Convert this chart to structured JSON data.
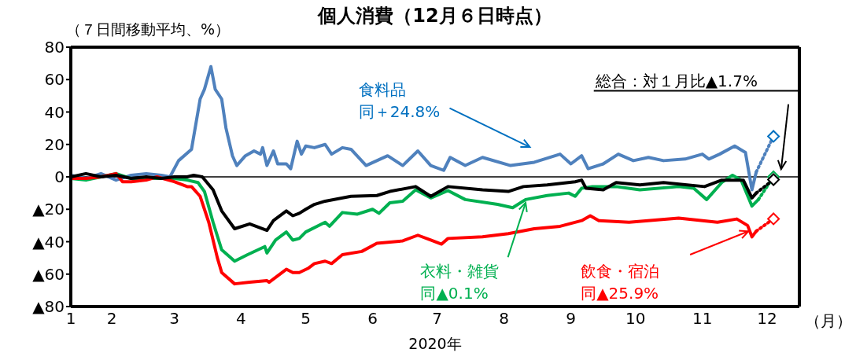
{
  "chart_data": {
    "type": "line",
    "title": "個人消費（12月６日時点）",
    "ylabel": "（７日間移動平均、%）",
    "xlabel": "2020年",
    "xlim": [
      "2020-01-13",
      "2020-12-16"
    ],
    "xticks": [
      {
        "value": "2020-01-13",
        "label": "1"
      },
      {
        "value": "2020-02-01",
        "label": "2"
      },
      {
        "value": "2020-03-01",
        "label": "3"
      },
      {
        "value": "2020-04-01",
        "label": "4"
      },
      {
        "value": "2020-05-01",
        "label": "5"
      },
      {
        "value": "2020-06-01",
        "label": "6"
      },
      {
        "value": "2020-07-01",
        "label": "7"
      },
      {
        "value": "2020-08-01",
        "label": "8"
      },
      {
        "value": "2020-09-01",
        "label": "9"
      },
      {
        "value": "2020-10-01",
        "label": "10"
      },
      {
        "value": "2020-11-01",
        "label": "11"
      },
      {
        "value": "2020-12-01",
        "label": "12"
      }
    ],
    "ylim": [
      -80,
      80
    ],
    "yticks": [
      {
        "value": -80,
        "label": "▲80"
      },
      {
        "value": -60,
        "label": "▲60"
      },
      {
        "value": -40,
        "label": "▲40"
      },
      {
        "value": -20,
        "label": "▲20"
      },
      0,
      20,
      40,
      60,
      80
    ],
    "grid": false,
    "marker": "none",
    "line_style": "solid",
    "ref_lines": [
      {
        "axis": "y",
        "value": 0,
        "color": "#000000"
      }
    ],
    "series": [
      {
        "color": "#4f81bd",
        "x": [
          "2020-01-13",
          "2020-01-20",
          "2020-01-27",
          "2020-02-03",
          "2020-02-10",
          "2020-02-17",
          "2020-02-24",
          "2020-02-28",
          "2020-03-03",
          "2020-03-09",
          "2020-03-13",
          "2020-03-15",
          "2020-03-18",
          "2020-03-20",
          "2020-03-23",
          "2020-03-25",
          "2020-03-28",
          "2020-03-30",
          "2020-04-03",
          "2020-04-07",
          "2020-04-10",
          "2020-04-11",
          "2020-04-13",
          "2020-04-16",
          "2020-04-18",
          "2020-04-22",
          "2020-04-24",
          "2020-04-27",
          "2020-04-29",
          "2020-05-01",
          "2020-05-05",
          "2020-05-10",
          "2020-05-13",
          "2020-05-18",
          "2020-05-22",
          "2020-05-29",
          "2020-06-03",
          "2020-06-08",
          "2020-06-15",
          "2020-06-22",
          "2020-06-28",
          "2020-07-04",
          "2020-07-07",
          "2020-07-14",
          "2020-07-22",
          "2020-08-04",
          "2020-08-15",
          "2020-08-27",
          "2020-09-01",
          "2020-09-06",
          "2020-09-09",
          "2020-09-16",
          "2020-09-23",
          "2020-09-30",
          "2020-10-07",
          "2020-10-14",
          "2020-10-24",
          "2020-11-01",
          "2020-11-04",
          "2020-11-09",
          "2020-11-16",
          "2020-11-21",
          "2020-11-24",
          "2020-11-26"
        ],
        "values": [
          1,
          -1,
          2,
          -2,
          1,
          2,
          1,
          0,
          10,
          17,
          48,
          54,
          68,
          54,
          48,
          30,
          13,
          7,
          13,
          16,
          14,
          18,
          7,
          16,
          8,
          8,
          5,
          22,
          14,
          19,
          18,
          20,
          14,
          18,
          17,
          7,
          10,
          13,
          7,
          16,
          7,
          4,
          12,
          7,
          12,
          7,
          9,
          14,
          8,
          13,
          5,
          8,
          14,
          10,
          12,
          10,
          11,
          14,
          11,
          14,
          19,
          15,
          -8,
          3
        ]
      },
      {
        "color": "#00b050",
        "x": [
          "2020-01-13",
          "2020-01-20",
          "2020-01-27",
          "2020-02-03",
          "2020-02-10",
          "2020-02-17",
          "2020-02-24",
          "2020-03-01",
          "2020-03-07",
          "2020-03-12",
          "2020-03-15",
          "2020-03-19",
          "2020-03-23",
          "2020-03-29",
          "2020-04-04",
          "2020-04-12",
          "2020-04-13",
          "2020-04-17",
          "2020-04-22",
          "2020-04-25",
          "2020-04-28",
          "2020-05-01",
          "2020-05-10",
          "2020-05-12",
          "2020-05-18",
          "2020-05-25",
          "2020-06-01",
          "2020-06-04",
          "2020-06-09",
          "2020-06-15",
          "2020-06-21",
          "2020-06-28",
          "2020-07-06",
          "2020-07-14",
          "2020-07-29",
          "2020-08-05",
          "2020-08-11",
          "2020-08-21",
          "2020-08-31",
          "2020-09-03",
          "2020-09-06",
          "2020-09-11",
          "2020-09-22",
          "2020-10-03",
          "2020-10-21",
          "2020-10-28",
          "2020-11-03",
          "2020-11-10",
          "2020-11-15",
          "2020-11-19",
          "2020-11-24",
          "2020-11-27"
        ],
        "values": [
          -1,
          -2,
          0,
          2,
          -1,
          -1,
          -1,
          -1,
          -2,
          -3.5,
          -9,
          -28,
          -45,
          -52,
          -48,
          -43,
          -47,
          -39,
          -34,
          -39,
          -38,
          -34,
          -28,
          -30.5,
          -22,
          -23,
          -20,
          -22.5,
          -16,
          -15,
          -8,
          -13,
          -8.5,
          -14,
          -17,
          -19,
          -14,
          -11.5,
          -10,
          -12,
          -7,
          -6,
          -6,
          -8,
          -6,
          -7,
          -14,
          -3.5,
          1,
          -2,
          -18,
          -14
        ]
      },
      {
        "color": "#ff0000",
        "x": [
          "2020-01-13",
          "2020-01-20",
          "2020-01-27",
          "2020-02-03",
          "2020-02-06",
          "2020-02-10",
          "2020-02-17",
          "2020-02-22",
          "2020-03-01",
          "2020-03-07",
          "2020-03-09",
          "2020-03-13",
          "2020-03-17",
          "2020-03-21",
          "2020-03-23",
          "2020-03-29",
          "2020-04-05",
          "2020-04-13",
          "2020-04-14",
          "2020-04-18",
          "2020-04-22",
          "2020-04-25",
          "2020-04-28",
          "2020-05-02",
          "2020-05-05",
          "2020-05-10",
          "2020-05-13",
          "2020-05-18",
          "2020-05-27",
          "2020-06-03",
          "2020-06-15",
          "2020-06-22",
          "2020-06-28",
          "2020-07-03",
          "2020-07-06",
          "2020-07-22",
          "2020-08-03",
          "2020-08-15",
          "2020-08-27",
          "2020-09-06",
          "2020-09-10",
          "2020-09-14",
          "2020-09-28",
          "2020-10-21",
          "2020-11-08",
          "2020-11-17",
          "2020-11-22",
          "2020-11-24",
          "2020-11-26"
        ],
        "values": [
          -1,
          -1,
          0,
          2,
          -3,
          -3,
          -2,
          0,
          -3,
          -6,
          -6,
          -12,
          -28,
          -50,
          -59,
          -66,
          -65,
          -64,
          -65,
          -61,
          -57,
          -59,
          -59,
          -56.5,
          -53.5,
          -52,
          -53.5,
          -48,
          -46,
          -41,
          -39.5,
          -36,
          -39,
          -41.5,
          -38,
          -37,
          -35,
          -32,
          -30.5,
          -27,
          -24,
          -27,
          -28,
          -25.5,
          -28,
          -26,
          -30,
          -37,
          -33.5
        ]
      },
      {
        "color": "#000000",
        "x": [
          "2020-01-13",
          "2020-01-20",
          "2020-01-27",
          "2020-02-03",
          "2020-02-10",
          "2020-02-17",
          "2020-02-24",
          "2020-03-01",
          "2020-03-07",
          "2020-03-10",
          "2020-03-14",
          "2020-03-19",
          "2020-03-23",
          "2020-03-29",
          "2020-04-05",
          "2020-04-13",
          "2020-04-16",
          "2020-04-22",
          "2020-04-25",
          "2020-04-28",
          "2020-05-01",
          "2020-05-05",
          "2020-05-10",
          "2020-05-22",
          "2020-06-03",
          "2020-06-09",
          "2020-06-21",
          "2020-06-28",
          "2020-07-06",
          "2020-07-22",
          "2020-08-03",
          "2020-08-10",
          "2020-08-21",
          "2020-09-03",
          "2020-09-06",
          "2020-09-08",
          "2020-09-16",
          "2020-09-22",
          "2020-10-03",
          "2020-10-14",
          "2020-11-02",
          "2020-11-10",
          "2020-11-20",
          "2020-11-24",
          "2020-11-26"
        ],
        "values": [
          0,
          2,
          0,
          1,
          -1,
          0,
          -1,
          0,
          0,
          1,
          0,
          -8,
          -21,
          -32,
          -29,
          -33,
          -27,
          -21,
          -24,
          -22.5,
          -20,
          -17,
          -15,
          -12,
          -11.5,
          -9,
          -6,
          -12,
          -6,
          -8,
          -9,
          -6,
          -5,
          -3,
          -2,
          -7,
          -8,
          -3.5,
          -5,
          -3.5,
          -6,
          -2,
          -2,
          -13,
          -10
        ]
      },
      {
        "color": "#4f81bd",
        "line_style": "dotted",
        "x": [
          "2020-11-26",
          "2020-12-04"
        ],
        "values": [
          3,
          25
        ]
      },
      {
        "color": "#00b050",
        "line_style": "dotted",
        "x": [
          "2020-11-27",
          "2020-12-04"
        ],
        "values": [
          -14,
          0
        ]
      },
      {
        "color": "#ff0000",
        "line_style": "dotted",
        "x": [
          "2020-11-26",
          "2020-12-04"
        ],
        "values": [
          -33.5,
          -25.9
        ]
      },
      {
        "color": "#000000",
        "line_style": "dotted",
        "x": [
          "2020-11-26",
          "2020-12-04"
        ],
        "values": [
          -10,
          -1.7
        ]
      },
      {
        "type": "scatter",
        "marker": "diamond",
        "color": "#0070c0",
        "x": [
          "2020-12-04"
        ],
        "values": [
          25
        ]
      },
      {
        "type": "scatter",
        "marker": "diamond",
        "color": "#00b050",
        "x": [
          "2020-12-04"
        ],
        "values": [
          0
        ]
      },
      {
        "type": "scatter",
        "marker": "diamond",
        "color": "#ff0000",
        "x": [
          "2020-12-04"
        ],
        "values": [
          -25.9
        ]
      },
      {
        "type": "scatter",
        "marker": "diamond",
        "color": "#000000",
        "x": [
          "2020-12-04"
        ],
        "values": [
          -1.7
        ]
      }
    ],
    "annotations": [
      "食料品",
      "同＋24.8%",
      {
        "text": "衣料・雑貨",
        "x": "2020-08-11",
        "y": -14
      },
      "同▲0.1%",
      "飲食・宿泊",
      "同▲25.9%",
      "総合：対１月比▲1.7%",
      "（月）"
    ]
  }
}
